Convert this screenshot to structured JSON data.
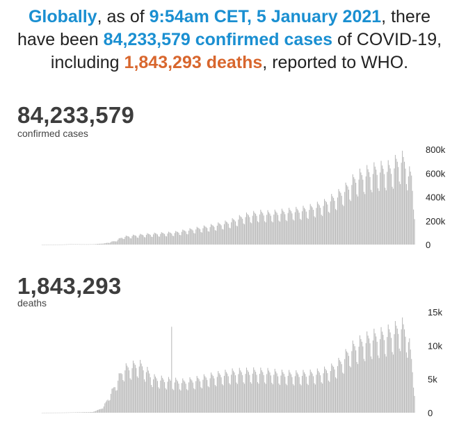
{
  "headline": {
    "part1": "Globally",
    "part2": ", as of ",
    "part3": "9:54am CET, 5 January 2021",
    "part4": ", there",
    "part5": "have been ",
    "part6": "84,233,579 confirmed cases",
    "part7": " of COVID-19,",
    "part8": "including ",
    "part9": "1,843,293 deaths",
    "part10": ", reported to WHO."
  },
  "cases": {
    "total": "84,233,579",
    "label": "confirmed cases"
  },
  "deaths": {
    "total": "1,843,293",
    "label": "deaths"
  },
  "colors": {
    "blue": "#1a8fd1",
    "orange": "#d8662d",
    "bars": "#b9b9b9",
    "text": "#3d3d3d"
  },
  "chart_data": [
    {
      "type": "bar",
      "xlabel": "",
      "ylabel": "",
      "ylim": [
        0,
        800000
      ],
      "yticks": [
        0,
        200000,
        400000,
        600000,
        800000
      ],
      "ytick_labels": [
        "0",
        "200k",
        "400k",
        "600k",
        "800k"
      ],
      "axis_side": "right",
      "grid": false,
      "note": "daily new confirmed cases, one bar per day, approx. 3 Jan 2020 – 5 Jan 2021",
      "keyframes": {
        "day": [
          0,
          20,
          28,
          42,
          50,
          62,
          72,
          80,
          95,
          110,
          130,
          150,
          170,
          185,
          200,
          215,
          225,
          235,
          245,
          255,
          262,
          270,
          278,
          285,
          290,
          300,
          310,
          320,
          330,
          340,
          345,
          350,
          355,
          360,
          362,
          365,
          368
        ],
        "value": [
          0,
          500,
          3000,
          2000,
          2500,
          10000,
          30000,
          65000,
          80000,
          90000,
          100000,
          130000,
          160000,
          190000,
          240000,
          265000,
          260000,
          270000,
          280000,
          290000,
          300000,
          320000,
          340000,
          380000,
          400000,
          470000,
          560000,
          600000,
          630000,
          640000,
          640000,
          690000,
          720000,
          680000,
          600000,
          580000,
          300000
        ]
      }
    },
    {
      "type": "bar",
      "xlabel": "",
      "ylabel": "",
      "ylim": [
        0,
        15000
      ],
      "yticks": [
        0,
        5000,
        10000,
        15000
      ],
      "ytick_labels": [
        "0",
        "5k",
        "10k",
        "15k"
      ],
      "axis_side": "right",
      "grid": false,
      "note": "daily new deaths, one bar per day",
      "keyframes": {
        "day": [
          0,
          20,
          35,
          50,
          60,
          70,
          80,
          90,
          95,
          100,
          105,
          110,
          125,
          140,
          155,
          170,
          190,
          210,
          225,
          235,
          250,
          265,
          275,
          285,
          295,
          305,
          315,
          325,
          335,
          345,
          350,
          355,
          360,
          362,
          365,
          368
        ],
        "value": [
          0,
          20,
          60,
          100,
          700,
          3500,
          6500,
          7000,
          7300,
          6800,
          6000,
          5200,
          4800,
          4600,
          5000,
          5500,
          6000,
          6100,
          6000,
          5800,
          5700,
          5800,
          6000,
          6500,
          7600,
          9500,
          10500,
          11200,
          11500,
          12000,
          12400,
          13000,
          12000,
          11000,
          8000,
          3500
        ]
      },
      "spike": {
        "day": 128,
        "value": 12800
      }
    }
  ]
}
